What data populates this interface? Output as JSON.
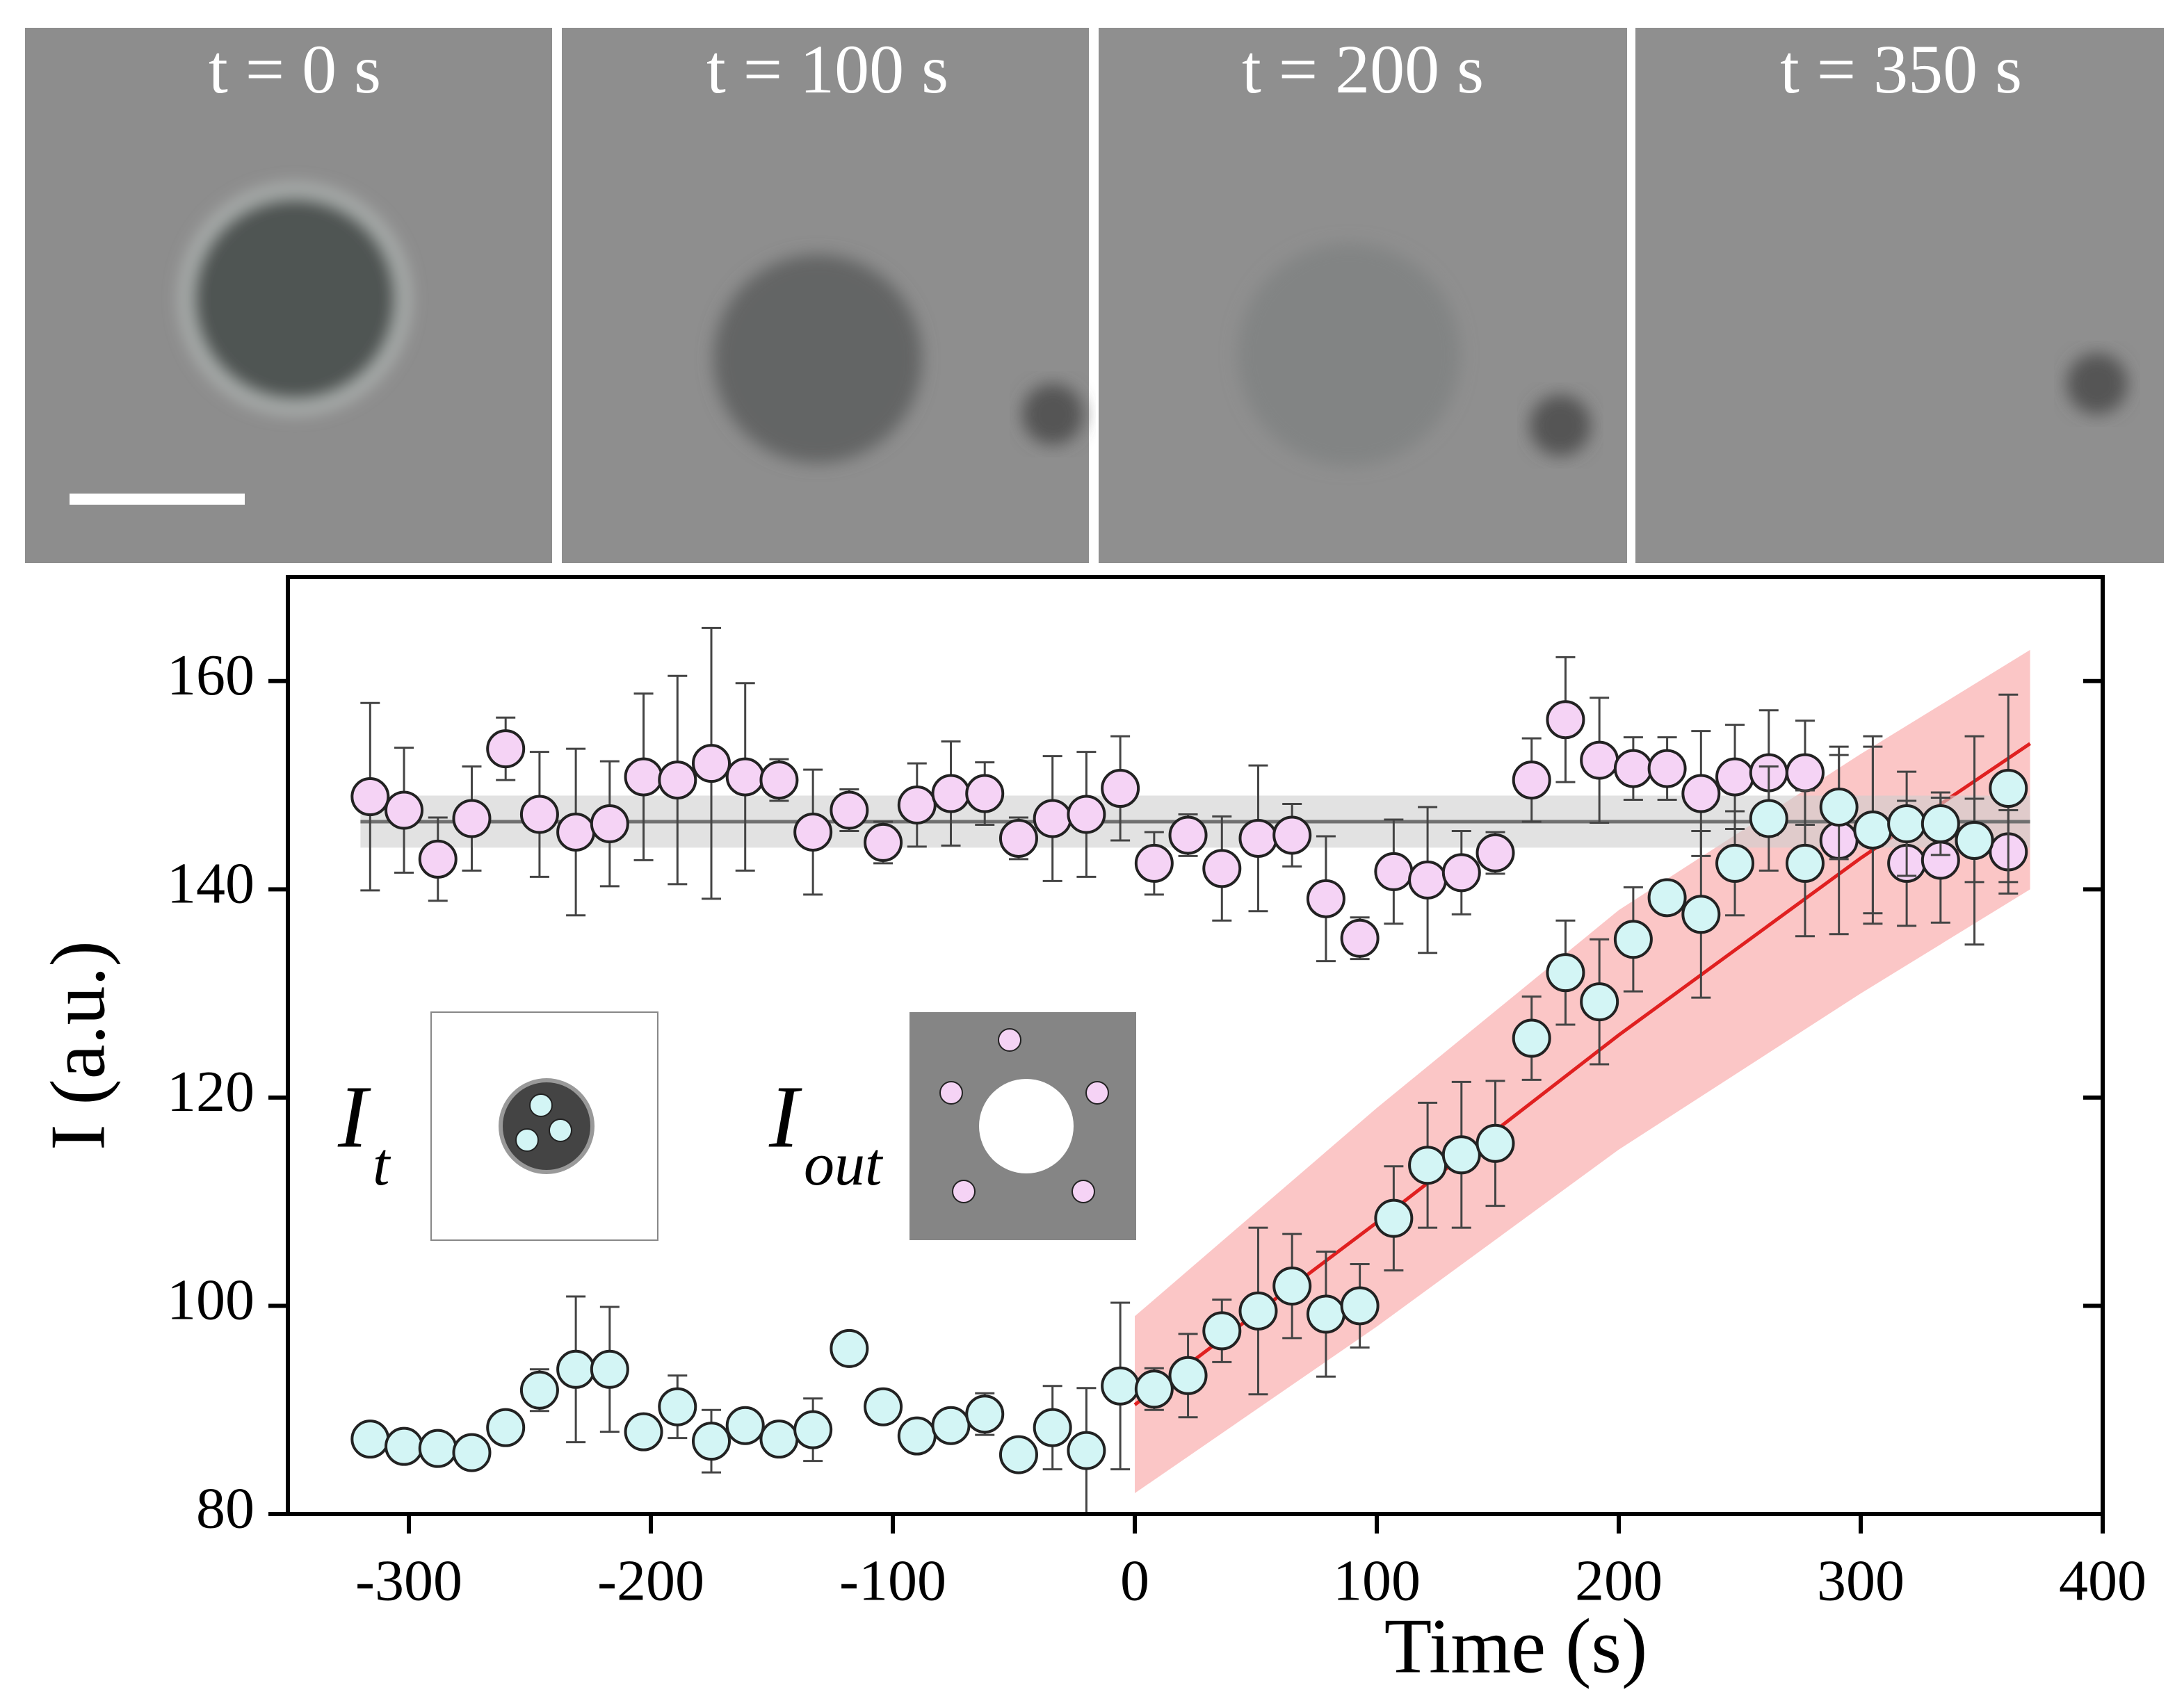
{
  "panels": [
    "t = 0 s",
    "t = 100 s",
    "t = 200 s",
    "t = 350 s"
  ],
  "chart_data": {
    "type": "scatter",
    "xlabel": "Time (s)",
    "ylabel": "I (a.u.)",
    "xlim": [
      -350,
      400
    ],
    "xticks": [
      -300,
      -200,
      -100,
      0,
      100,
      200,
      300,
      400
    ],
    "ylim": [
      80,
      170
    ],
    "yticks": [
      80,
      100,
      120,
      140,
      160
    ],
    "insets": [
      {
        "main": "I",
        "sub": "t"
      },
      {
        "main": "I",
        "sub": "out"
      }
    ],
    "x": [
      -316,
      -302,
      -288,
      -274,
      -260,
      -246,
      -231,
      -217,
      -203,
      -189,
      -175,
      -161,
      -147,
      -133,
      -118,
      -104,
      -90,
      -76,
      -62,
      -48,
      -34,
      -20,
      -6,
      8,
      22,
      36,
      51,
      65,
      79,
      93,
      107,
      121,
      135,
      149,
      164,
      178,
      192,
      206,
      220,
      234,
      248,
      262,
      277,
      291,
      305,
      319,
      333,
      347,
      361
    ],
    "series": [
      {
        "color": "#f5d3f5",
        "values": [
          148.9,
          147.6,
          142.9,
          146.8,
          153.5,
          147.2,
          145.5,
          146.3,
          150.8,
          150.5,
          152.1,
          150.8,
          150.5,
          145.5,
          147.6,
          144.5,
          148.1,
          149.2,
          149.2,
          144.9,
          146.8,
          147.2,
          149.7,
          142.5,
          145.2,
          142,
          144.9,
          145.2,
          139.1,
          135.3,
          141.7,
          140.9,
          141.6,
          143.5,
          150.5,
          156.3,
          152.4,
          151.6,
          151.6,
          149.2,
          150.8,
          151.2,
          151.2,
          144.7,
          145.7,
          142.5,
          142.8,
          144.7,
          143.6
        ],
        "errors": [
          9,
          6,
          4,
          5,
          3,
          6,
          8,
          6,
          8,
          10,
          13,
          9,
          2,
          6,
          2,
          2,
          4,
          5,
          3,
          2,
          6,
          6,
          5,
          3,
          2,
          5,
          7,
          3,
          6,
          2,
          5,
          7,
          4,
          2,
          4,
          6,
          6,
          3,
          3,
          6,
          5,
          6,
          5,
          9,
          9,
          6,
          6,
          10,
          4
        ]
      },
      {
        "color": "#d3f5f5",
        "values": [
          87.2,
          86.5,
          86.3,
          85.9,
          88.3,
          91.9,
          93.9,
          93.9,
          87.9,
          90.3,
          87,
          88.5,
          87.2,
          88.1,
          95.9,
          90.3,
          87.5,
          88.5,
          89.6,
          85.7,
          88.3,
          86.1,
          92.3,
          92,
          93.3,
          97.6,
          99.5,
          101.9,
          99.2,
          100,
          108.4,
          113.5,
          114.5,
          115.6,
          125.7,
          132,
          129.2,
          135.2,
          139.2,
          137.6,
          142.5,
          146.8,
          142.5,
          147.9,
          145.7,
          146.3,
          146.3,
          144.7,
          149.7
        ],
        "errors": [
          1,
          1,
          1,
          1,
          1,
          2,
          7,
          6,
          1,
          3,
          3,
          1,
          1,
          3,
          1,
          1,
          1,
          1,
          2,
          1,
          4,
          6,
          8,
          2,
          4,
          3,
          8,
          5,
          6,
          4,
          5,
          6,
          7,
          6,
          4,
          5,
          6,
          5,
          1,
          8,
          5,
          5,
          7,
          5,
          8,
          5,
          3,
          4,
          9
        ]
      }
    ],
    "fits": [
      {
        "color": "#e02020",
        "band_color": "#f9a0a0",
        "x": [
          0,
          100,
          200,
          300,
          370
        ],
        "values": [
          90.5,
          108,
          126,
          143,
          154
        ],
        "lower": [
          82,
          98,
          115,
          130,
          140
        ],
        "upper": [
          99,
          119,
          138,
          153,
          163
        ]
      },
      {
        "color": "#707070",
        "band_color": "#cfcfcf",
        "x": [
          -320,
          370
        ],
        "values": [
          146.5,
          146.5
        ],
        "lower": [
          144,
          144
        ],
        "upper": [
          149,
          149
        ]
      }
    ]
  }
}
